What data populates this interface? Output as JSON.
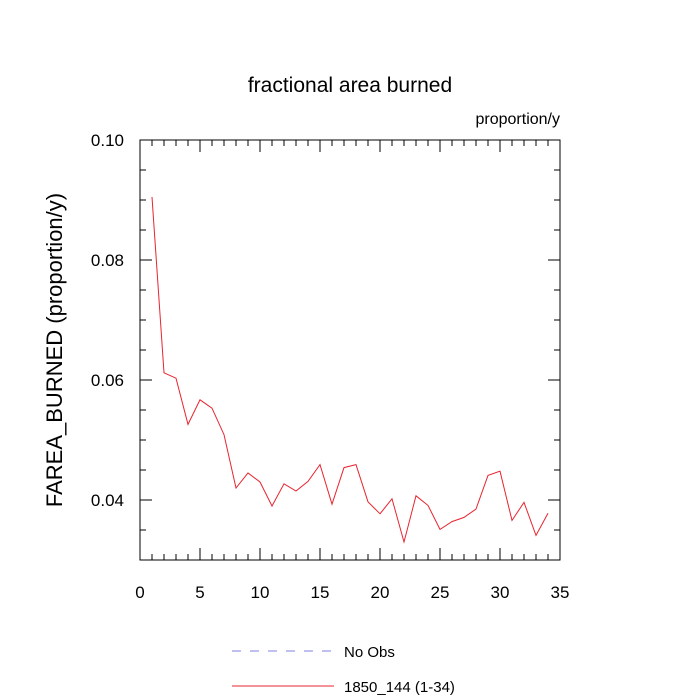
{
  "chart_data": {
    "type": "line",
    "title": "fractional area burned",
    "units_label": "proportion/y",
    "ylabel": "FAREA_BURNED  (proportion/y)",
    "xlabel": "",
    "xlim": [
      0,
      35
    ],
    "ylim": [
      0.03,
      0.1
    ],
    "x_ticks": [
      0,
      5,
      10,
      15,
      20,
      25,
      30,
      35
    ],
    "x_tick_labels": [
      "0",
      "5",
      "10",
      "15",
      "20",
      "25",
      "30",
      "35"
    ],
    "y_ticks": [
      0.04,
      0.06,
      0.08,
      0.1
    ],
    "y_tick_labels": [
      "0.04",
      "0.06",
      "0.08",
      "0.10"
    ],
    "x": [
      1,
      2,
      3,
      4,
      5,
      6,
      7,
      8,
      9,
      10,
      11,
      12,
      13,
      14,
      15,
      16,
      17,
      18,
      19,
      20,
      21,
      22,
      23,
      24,
      25,
      26,
      27,
      28,
      29,
      30,
      31,
      32,
      33,
      34
    ],
    "series": [
      {
        "name": "1850_144 (1-34)",
        "color": "#e8242f",
        "style": "solid",
        "values": [
          0.0905,
          0.0612,
          0.0603,
          0.0526,
          0.0567,
          0.0553,
          0.0509,
          0.042,
          0.0445,
          0.043,
          0.039,
          0.0427,
          0.0415,
          0.0431,
          0.0459,
          0.0393,
          0.0454,
          0.0459,
          0.0397,
          0.0377,
          0.0402,
          0.033,
          0.0407,
          0.0391,
          0.0351,
          0.0364,
          0.0371,
          0.0385,
          0.0441,
          0.0448,
          0.0366,
          0.0396,
          0.0341,
          0.0378
        ]
      }
    ],
    "legend": {
      "placement": "bottom",
      "entries": [
        {
          "label": "No Obs",
          "color": "#8080e0",
          "style": "dashed"
        },
        {
          "label": "1850_144 (1-34)",
          "color": "#e8242f",
          "style": "solid"
        }
      ]
    },
    "grid": false
  }
}
